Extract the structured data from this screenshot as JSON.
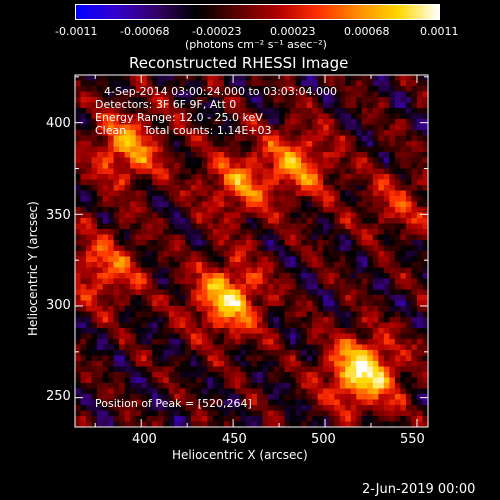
{
  "colorbar": {
    "ticks": [
      "-0.0011",
      "-0.00068",
      "-0.00023",
      "0.00023",
      "0.00068",
      "0.0011"
    ],
    "unit_label": "(photons cm⁻² s⁻¹ asec⁻²)",
    "stops": [
      "#0000ff",
      "#3300cc",
      "#330066",
      "#000000",
      "#5a0000",
      "#b00000",
      "#ff3000",
      "#ff8c00",
      "#ffd800",
      "#ffffff"
    ]
  },
  "plot": {
    "title": "Reconstructed RHESSI Image",
    "annotations": [
      "4-Sep-2014 03:00:24.000 to 03:03:04.000",
      "Detectors: 3F 6F 9F, Att 0",
      "Energy Range: 12.0 - 25.0 keV",
      "Clean     Total counts: 1.14E+03"
    ],
    "peak_text": "Position of Peak = [520,264]",
    "xlabel": "Heliocentric X (arcsec)",
    "ylabel": "Heliocentric Y (arcsec)",
    "x_ticks": [
      "400",
      "450",
      "500",
      "550"
    ],
    "y_ticks": [
      "250",
      "300",
      "350",
      "400"
    ],
    "x_range": [
      364,
      556
    ],
    "y_range": [
      234,
      426
    ],
    "hot_spots": [
      {
        "x": 520,
        "y": 264,
        "value": 1.0
      },
      {
        "x": 447,
        "y": 304,
        "value": 0.85
      },
      {
        "x": 392,
        "y": 386,
        "value": 0.7
      },
      {
        "x": 452,
        "y": 366,
        "value": 0.55
      },
      {
        "x": 486,
        "y": 378,
        "value": 0.6
      },
      {
        "x": 540,
        "y": 356,
        "value": 0.35
      },
      {
        "x": 380,
        "y": 320,
        "value": 0.55
      }
    ]
  },
  "footer": {
    "timestamp": "2-Jun-2019 00:00"
  }
}
